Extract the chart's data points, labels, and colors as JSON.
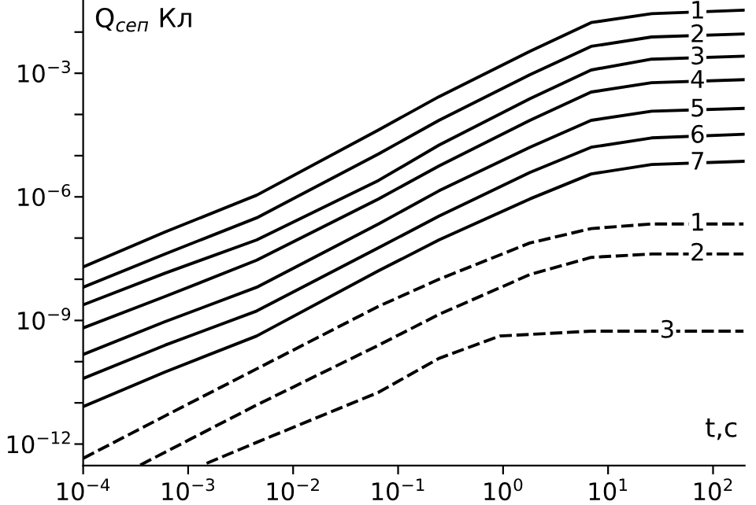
{
  "chart_data": {
    "type": "line",
    "xlabel": "t,c",
    "ylabel": "Q$_{сеп}$ Кл",
    "log": "xy",
    "grid": false,
    "legend": false,
    "marker": "none",
    "x": [
      0.0001,
      0.0006,
      0.0045,
      0.065,
      0.245,
      1.8,
      6.9,
      26,
      195
    ],
    "series": [
      {
        "name": "1",
        "line_style": "solid",
        "color": "#000000",
        "values": [
          2e-08,
          1.4e-07,
          1.1e-06,
          4.2e-05,
          0.00027,
          0.0034,
          0.017,
          0.028,
          0.034
        ]
      },
      {
        "name": "2",
        "line_style": "solid",
        "color": "#000000",
        "values": [
          6.4e-09,
          4.1e-08,
          3.1e-07,
          1.1e-05,
          7.2e-05,
          0.00092,
          0.0045,
          0.0076,
          0.009
        ]
      },
      {
        "name": "3",
        "line_style": "solid",
        "color": "#000000",
        "values": [
          2.4e-09,
          1.4e-08,
          9e-08,
          2.5e-06,
          1.8e-05,
          0.00024,
          0.0012,
          0.0022,
          0.0026
        ]
      },
      {
        "name": "4",
        "line_style": "solid",
        "color": "#000000",
        "values": [
          6.6e-10,
          3.8e-09,
          2.9e-08,
          8.9e-07,
          5.6e-06,
          7.2e-05,
          0.00035,
          0.00059,
          0.0007
        ]
      },
      {
        "name": "5",
        "line_style": "solid",
        "color": "#000000",
        "values": [
          1.5e-10,
          9.3e-10,
          6.4e-09,
          2.2e-07,
          1.4e-06,
          1.6e-05,
          7.2e-05,
          0.00012,
          0.00014
        ]
      },
      {
        "name": "6",
        "line_style": "solid",
        "color": "#000000",
        "values": [
          3.9e-11,
          2.5e-10,
          1.7e-09,
          5.8e-08,
          3.4e-07,
          3.9e-06,
          1.6e-05,
          2.7e-05,
          3.3e-05
        ]
      },
      {
        "name": "7",
        "line_style": "solid",
        "color": "#000000",
        "values": [
          8.1e-12,
          5.6e-11,
          4.2e-10,
          1.6e-08,
          9e-08,
          8.9e-07,
          3.6e-06,
          6.1e-06,
          7.3e-06
        ]
      },
      {
        "name": "1",
        "line_style": "dashed",
        "color": "#000000",
        "values": [
          4.5e-13,
          4.8e-12,
          6.7e-11,
          2.2e-09,
          1e-08,
          7.6e-08,
          1.7e-07,
          2.2e-07,
          2.2e-07
        ]
      },
      {
        "name": "2",
        "line_style": "dashed",
        "color": "#000000",
        "x": [
          0.00035,
          0.0045,
          0.065,
          0.245,
          1.8,
          6.9,
          26,
          195
        ],
        "values": [
          3.1e-13,
          8.9e-12,
          2.5e-10,
          1.4e-09,
          1.3e-08,
          3.4e-08,
          4.1e-08,
          4.1e-08
        ]
      },
      {
        "name": "3",
        "line_style": "dashed",
        "color": "#000000",
        "x": [
          0.0015,
          0.0045,
          0.065,
          0.245,
          0.93,
          6.9,
          195
        ],
        "values": [
          3.4e-13,
          1.1e-12,
          1.8e-11,
          1.2e-10,
          4.2e-10,
          5.5e-10,
          5.5e-10
        ]
      }
    ],
    "xlim": [
      0.0001,
      200
    ],
    "ylim": [
      3e-13,
      0.06
    ],
    "xticks": [
      {
        "value": 0.0001,
        "label": "10$^{−4}$"
      },
      {
        "value": 0.001,
        "label": "10$^{−3}$"
      },
      {
        "value": 0.01,
        "label": "10$^{−2}$"
      },
      {
        "value": 0.1,
        "label": "10$^{−1}$"
      },
      {
        "value": 1,
        "label": "10$^{0}$"
      },
      {
        "value": 10,
        "label": "10$^{1}$"
      },
      {
        "value": 100,
        "label": "10$^{2}$"
      }
    ],
    "yticks": [
      {
        "value": 1e-12,
        "label": "10$^{−12}$"
      },
      {
        "value": 1e-11,
        "label": null
      },
      {
        "value": 1e-10,
        "label": null
      },
      {
        "value": 1e-09,
        "label": "10$^{−9}$"
      },
      {
        "value": 1e-08,
        "label": null
      },
      {
        "value": 1e-07,
        "label": null
      },
      {
        "value": 1e-06,
        "label": "10$^{−6}$"
      },
      {
        "value": 1e-05,
        "label": null
      },
      {
        "value": 0.0001,
        "label": null
      },
      {
        "value": 0.001,
        "label": "10$^{−3}$"
      },
      {
        "value": 0.01,
        "label": null
      }
    ]
  }
}
